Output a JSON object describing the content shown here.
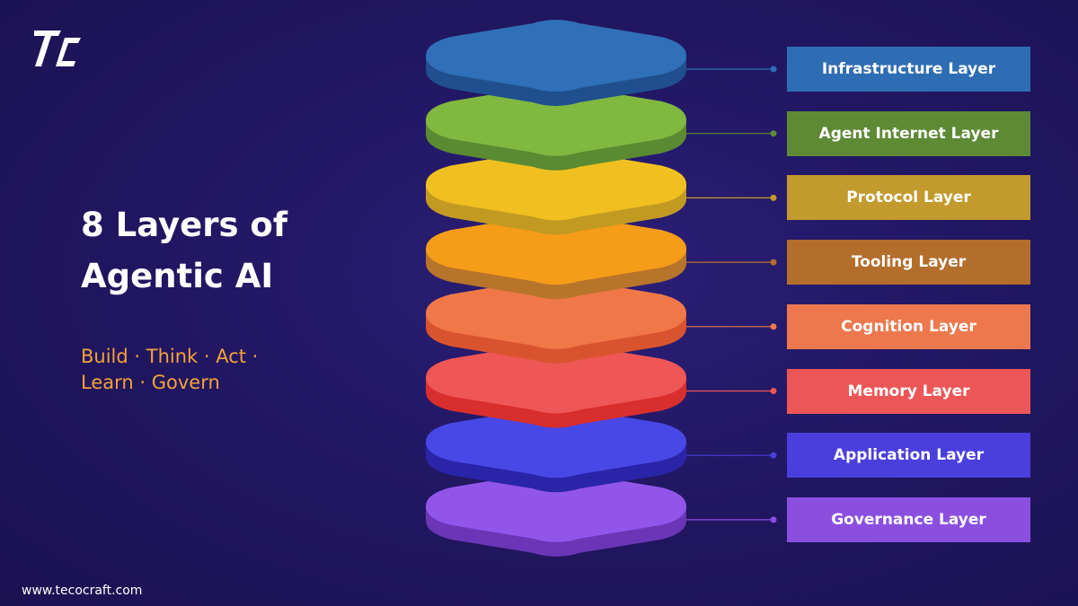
{
  "brand": {
    "logo_name": "tecocraft-logo",
    "website": "www.tecocraft.com"
  },
  "heading": {
    "title_line1": "8 Layers of",
    "title_line2": "Agentic AI"
  },
  "tagline": {
    "line1": "Build · Think · Act ·",
    "line2": "Learn · Govern"
  },
  "layers": [
    {
      "label": "Infrastructure Layer",
      "top": "#3070b8",
      "side": "#1f4f8e",
      "box": "#2e6db3"
    },
    {
      "label": "Agent Internet Layer",
      "top": "#80b840",
      "side": "#5a8a32",
      "box": "#5e8a36"
    },
    {
      "label": "Protocol Layer",
      "top": "#f0c020",
      "side": "#c29a22",
      "box": "#c39a2e"
    },
    {
      "label": "Tooling Layer",
      "top": "#f59c18",
      "side": "#b8742a",
      "box": "#b36e2c"
    },
    {
      "label": "Cognition Layer",
      "top": "#f07848",
      "side": "#d9542e",
      "box": "#ed784e"
    },
    {
      "label": "Memory Layer",
      "top": "#ef5656",
      "side": "#d82e2e",
      "box": "#ed5656"
    },
    {
      "label": "Application Layer",
      "top": "#4848e6",
      "side": "#2a24a8",
      "box": "#4a3fdd"
    },
    {
      "label": "Governance Layer",
      "top": "#9155ea",
      "side": "#6b35b8",
      "box": "#8b4fe0"
    }
  ]
}
